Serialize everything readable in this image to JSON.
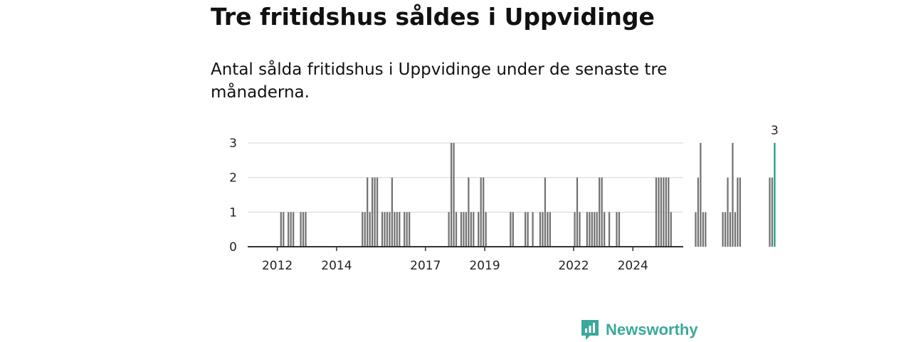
{
  "header": {
    "title": "Tre fritidshus såldes i Uppvidinge",
    "subtitle": "Antal sålda fritidshus i Uppvidinge under de senaste tre månaderna."
  },
  "brand": {
    "name": "Newsworthy",
    "color": "#3aa99a"
  },
  "colors": {
    "bar": "#737373",
    "highlight": "#1a9c8c",
    "grid": "#d9d9d9",
    "axis": "#333333"
  },
  "chart_data": {
    "type": "bar",
    "x_unit": "year",
    "x_start": 2011.0,
    "bar_width_years": 0.0833,
    "ylim": [
      0,
      3
    ],
    "yticks": [
      0,
      1,
      2,
      3
    ],
    "xticks": [
      2012,
      2014,
      2017,
      2019,
      2022,
      2024
    ],
    "xlim": [
      2011.0,
      2025.7
    ],
    "grid": true,
    "values": [
      0,
      0,
      0,
      0,
      0,
      0,
      0,
      0,
      0,
      0,
      0,
      0,
      0,
      1,
      1,
      0,
      1,
      1,
      1,
      0,
      0,
      1,
      1,
      1,
      0,
      0,
      0,
      0,
      0,
      0,
      0,
      0,
      0,
      0,
      0,
      0,
      0,
      0,
      0,
      0,
      0,
      0,
      0,
      0,
      0,
      0,
      1,
      1,
      2,
      1,
      2,
      2,
      2,
      0,
      1,
      1,
      1,
      1,
      2,
      1,
      1,
      1,
      0,
      1,
      1,
      1,
      0,
      0,
      0,
      0,
      0,
      0,
      0,
      0,
      0,
      0,
      0,
      0,
      0,
      0,
      0,
      1,
      3,
      3,
      1,
      0,
      1,
      1,
      1,
      2,
      1,
      1,
      0,
      1,
      2,
      2,
      1,
      0,
      0,
      0,
      0,
      0,
      0,
      0,
      0,
      0,
      1,
      1,
      0,
      0,
      0,
      0,
      1,
      1,
      0,
      1,
      0,
      0,
      1,
      1,
      2,
      1,
      1,
      0,
      0,
      0,
      0,
      0,
      0,
      0,
      0,
      0,
      1,
      2,
      1,
      0,
      0,
      1,
      1,
      1,
      1,
      1,
      2,
      2,
      1,
      0,
      1,
      0,
      0,
      1,
      1,
      0,
      0,
      0,
      0,
      0,
      0,
      0,
      0,
      0,
      0,
      0,
      0,
      0,
      0,
      2,
      2,
      2,
      2,
      2,
      2,
      1,
      0,
      0,
      0,
      0,
      0,
      0,
      0,
      0,
      0,
      1,
      2,
      3,
      1,
      1,
      0,
      0,
      0,
      0,
      0,
      0,
      1,
      1,
      2,
      1,
      3,
      1,
      2,
      2,
      0,
      0,
      0,
      0,
      0,
      0,
      0,
      0,
      0,
      0,
      0,
      2,
      2,
      3
    ],
    "highlight_label": "3"
  }
}
